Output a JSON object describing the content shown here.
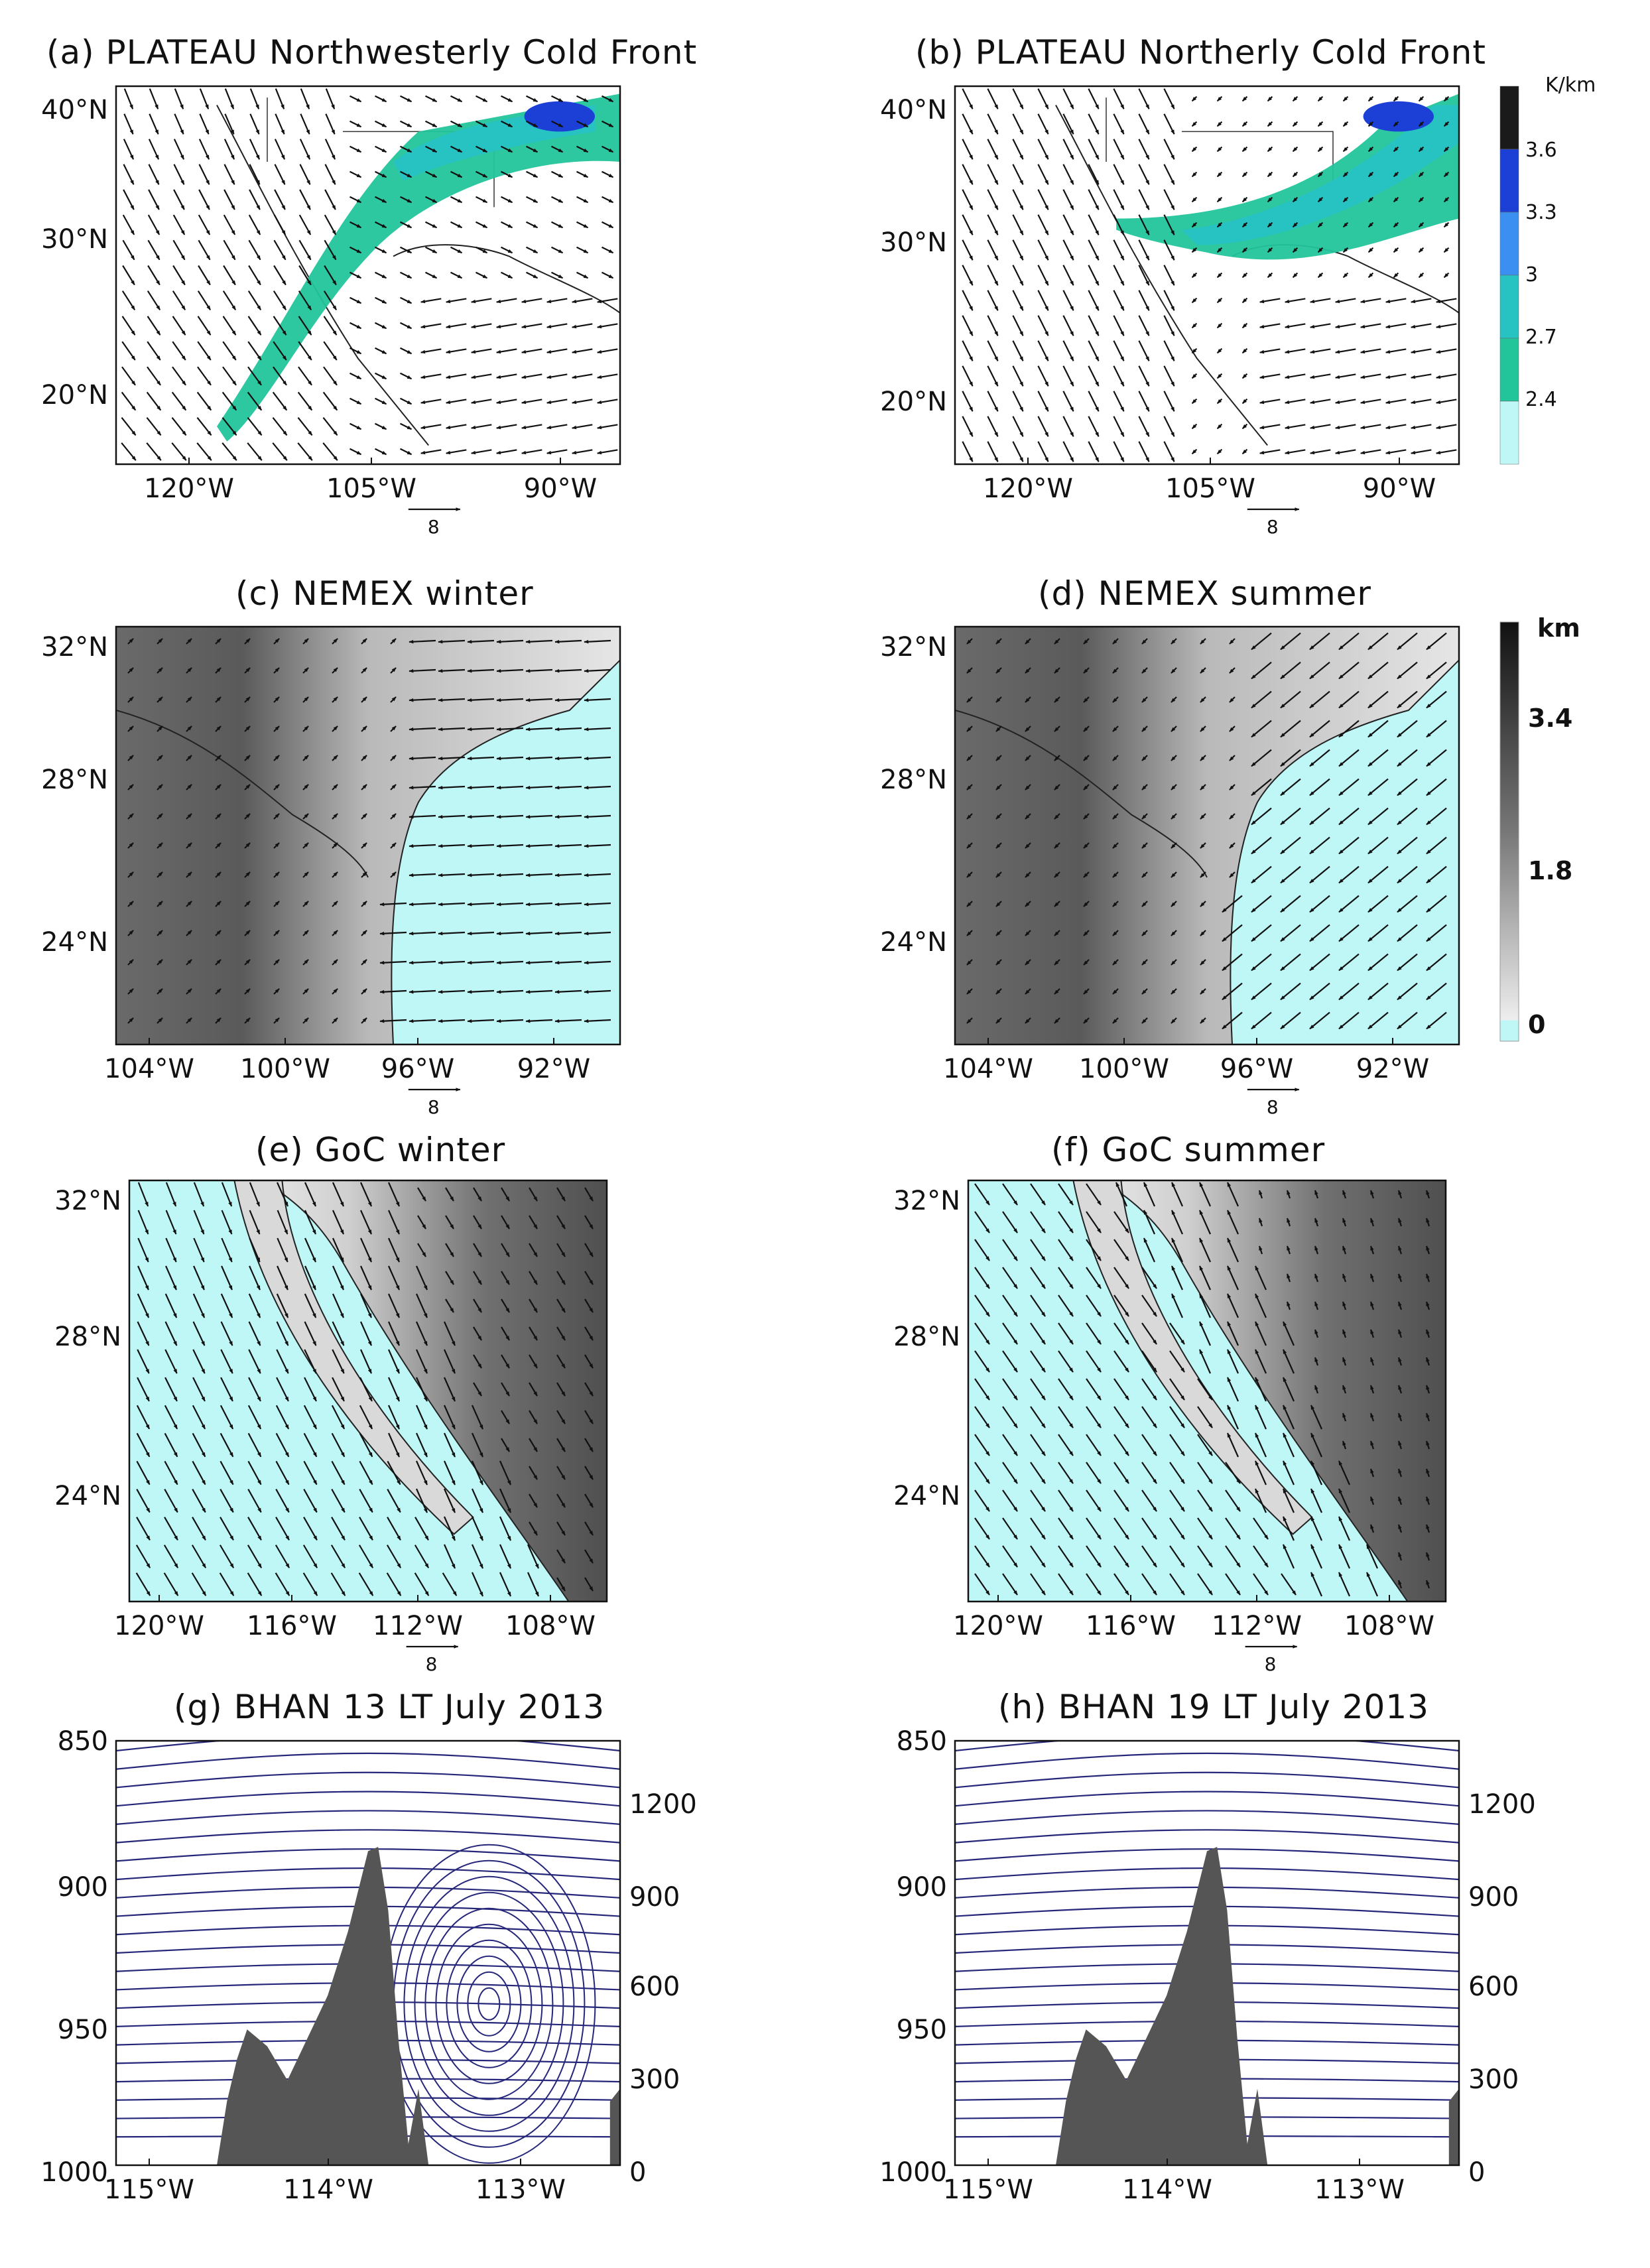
{
  "panels": [
    {
      "id": "a",
      "title": "(a) PLATEAU Northwesterly Cold Front",
      "kind": "front",
      "xticks": [
        "120°W",
        "105°W",
        "90°W"
      ],
      "yticks": [
        "40°N",
        "30°N",
        "20°N"
      ],
      "ref": "8",
      "front": "nw"
    },
    {
      "id": "b",
      "title": "(b) PLATEAU Northerly Cold Front",
      "kind": "front",
      "xticks": [
        "120°W",
        "105°W",
        "90°W"
      ],
      "yticks": [
        "40°N",
        "30°N",
        "20°N"
      ],
      "ref": "8",
      "front": "n"
    },
    {
      "id": "c",
      "title": "(c) NEMEX winter",
      "kind": "nemex",
      "xticks": [
        "104°W",
        "100°W",
        "96°W",
        "92°W"
      ],
      "yticks": [
        "32°N",
        "28°N",
        "24°N"
      ],
      "ref": "8",
      "season": "winter"
    },
    {
      "id": "d",
      "title": "(d) NEMEX summer",
      "kind": "nemex",
      "xticks": [
        "104°W",
        "100°W",
        "96°W",
        "92°W"
      ],
      "yticks": [
        "32°N",
        "28°N",
        "24°N"
      ],
      "ref": "8",
      "season": "summer"
    },
    {
      "id": "e",
      "title": "(e) GoC winter",
      "kind": "goc",
      "xticks": [
        "120°W",
        "116°W",
        "112°W",
        "108°W"
      ],
      "yticks": [
        "32°N",
        "28°N",
        "24°N"
      ],
      "ref": "8",
      "season": "winter"
    },
    {
      "id": "f",
      "title": "(f) GoC summer",
      "kind": "goc",
      "xticks": [
        "120°W",
        "116°W",
        "112°W",
        "108°W"
      ],
      "yticks": [
        "32°N",
        "28°N",
        "24°N"
      ],
      "ref": "8",
      "season": "summer"
    },
    {
      "id": "g",
      "title": "(g) BHAN 13 LT July 2013",
      "kind": "section",
      "xticks": [
        "115°W",
        "114°W",
        "113°W"
      ],
      "yticks": [
        "850",
        "900",
        "950",
        "1000"
      ],
      "y2ticks": [
        "1200",
        "900",
        "600",
        "300",
        "0"
      ],
      "vortex": true
    },
    {
      "id": "h",
      "title": "(h) BHAN 19 LT July 2013",
      "kind": "section",
      "xticks": [
        "115°W",
        "114°W",
        "113°W"
      ],
      "yticks": [
        "850",
        "900",
        "950",
        "1000"
      ],
      "y2ticks": [
        "1200",
        "900",
        "600",
        "300",
        "0"
      ],
      "vortex": false
    }
  ],
  "colorbar_gradient": {
    "unit": "K/km",
    "labels": [
      "3.6",
      "3.3",
      "3",
      "2.7",
      "2.4"
    ],
    "colors": [
      "#1a1a1a",
      "#1c3fd6",
      "#3a8ff0",
      "#27c3c3",
      "#22c59a",
      "#bff6f6"
    ]
  },
  "colorbar_height": {
    "unit": "km",
    "labels": [
      "3.4",
      "1.8",
      "0"
    ]
  },
  "colors": {
    "ocean": "#bff6f6",
    "front_green": "#22c59a",
    "front_teal": "#27c3c3",
    "front_blue": "#1c3fd6",
    "streamline": "#26267a",
    "terrain_fill": "#555555",
    "arrow": "#111111"
  }
}
